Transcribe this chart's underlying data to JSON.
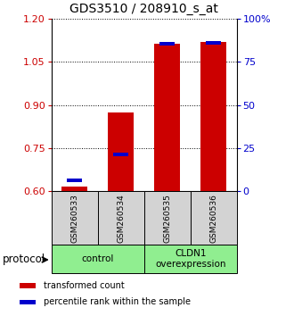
{
  "title": "GDS3510 / 208910_s_at",
  "samples": [
    "GSM260533",
    "GSM260534",
    "GSM260535",
    "GSM260536"
  ],
  "red_values": [
    0.615,
    0.875,
    1.115,
    1.12
  ],
  "blue_values": [
    0.638,
    0.728,
    1.113,
    1.118
  ],
  "ylim_left": [
    0.6,
    1.2
  ],
  "yticks_left": [
    0.6,
    0.75,
    0.9,
    1.05,
    1.2
  ],
  "yticks_right": [
    0,
    25,
    50,
    75,
    100
  ],
  "ytick_labels_right": [
    "0",
    "25",
    "50",
    "75",
    "100%"
  ],
  "bar_bottom": 0.6,
  "bar_width": 0.55,
  "group_box_color": "#d3d3d3",
  "red_color": "#cc0000",
  "blue_color": "#0000cc",
  "green_color": "#90ee90",
  "protocol_label": "protocol",
  "legend_red": "transformed count",
  "legend_blue": "percentile rank within the sample",
  "title_fontsize": 10,
  "tick_fontsize": 8,
  "label_fontsize": 8,
  "group_labels": [
    "control",
    "CLDN1\noverexpression"
  ]
}
